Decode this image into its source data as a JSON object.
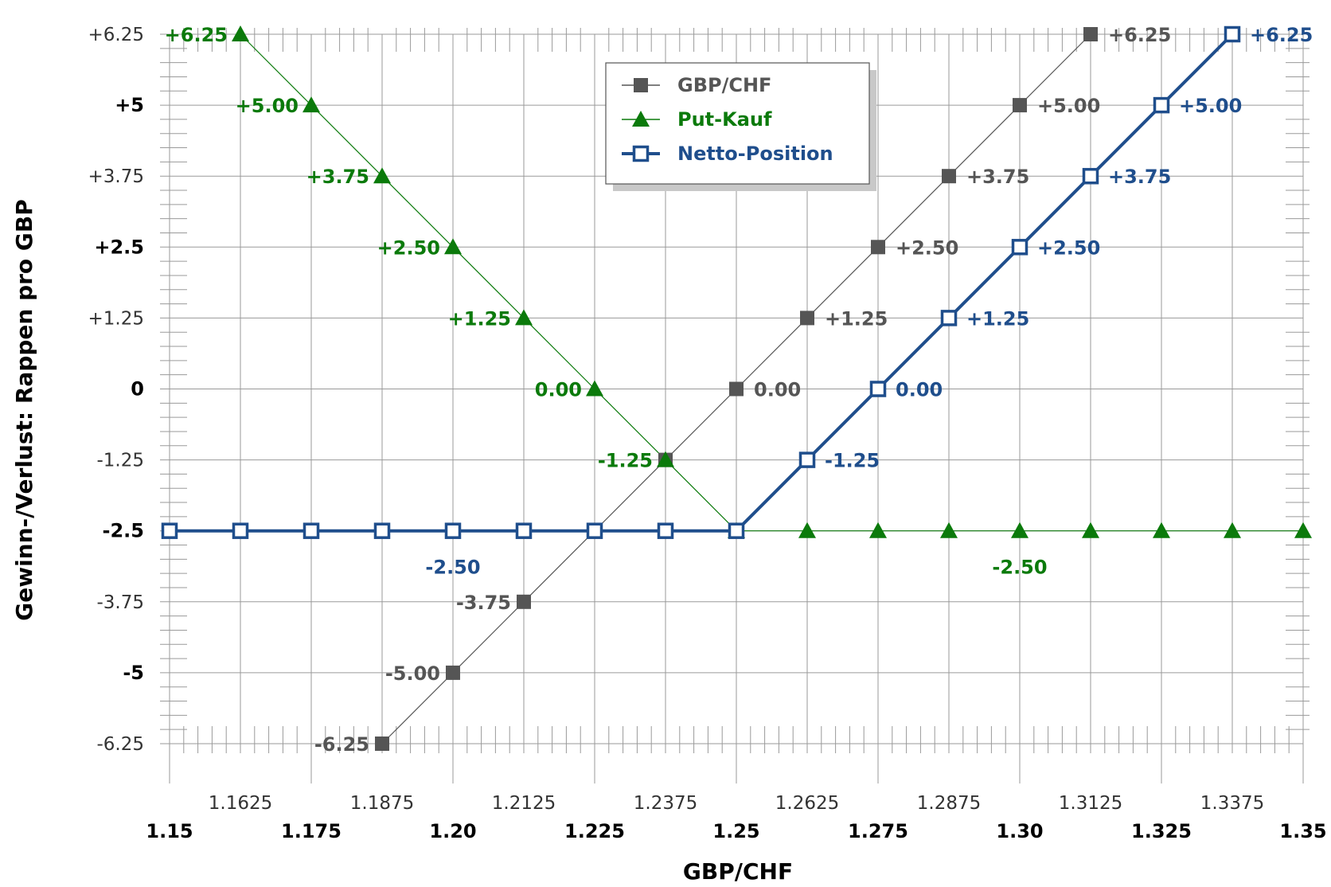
{
  "chart_data": {
    "type": "line",
    "xlabel": "GBP/CHF",
    "ylabel": "Gewinn-/Verlust: Rappen pro GBP",
    "xlim": [
      1.15,
      1.35
    ],
    "ylim": [
      -6.25,
      6.25
    ],
    "grid": true,
    "legend_position": "top-center",
    "x_ticks_major": [
      "1.15",
      "1.175",
      "1.20",
      "1.225",
      "1.25",
      "1.275",
      "1.30",
      "1.325",
      "1.35"
    ],
    "x_ticks_minor": [
      "1.1625",
      "1.1875",
      "1.2125",
      "1.2375",
      "1.2625",
      "1.2875",
      "1.3125",
      "1.3375"
    ],
    "y_ticks": [
      {
        "value": 6.25,
        "label": "+6.25",
        "bold": false
      },
      {
        "value": 5,
        "label": "+5",
        "bold": true
      },
      {
        "value": 3.75,
        "label": "+3.75",
        "bold": false
      },
      {
        "value": 2.5,
        "label": "+2.5",
        "bold": true
      },
      {
        "value": 1.25,
        "label": "+1.25",
        "bold": false
      },
      {
        "value": 0,
        "label": "0",
        "bold": true
      },
      {
        "value": -1.25,
        "label": "-1.25",
        "bold": false
      },
      {
        "value": -2.5,
        "label": "-2.5",
        "bold": true
      },
      {
        "value": -3.75,
        "label": "-3.75",
        "bold": false
      },
      {
        "value": -5,
        "label": "-5",
        "bold": true
      },
      {
        "value": -6.25,
        "label": "-6.25",
        "bold": false
      }
    ],
    "series": [
      {
        "name": "GBP/CHF",
        "color": "#555555",
        "marker": "filled-square",
        "x": [
          1.1875,
          1.2,
          1.2125,
          1.225,
          1.2375,
          1.25,
          1.2625,
          1.275,
          1.2875,
          1.3,
          1.3125
        ],
        "y": [
          -6.25,
          -5,
          -3.75,
          -2.5,
          -1.25,
          0,
          1.25,
          2.5,
          3.75,
          5,
          6.25
        ],
        "labels": [
          {
            "x": 1.1875,
            "y": -6.25,
            "text": "-6.25",
            "side": "left"
          },
          {
            "x": 1.2,
            "y": -5,
            "text": "-5.00",
            "side": "left"
          },
          {
            "x": 1.2125,
            "y": -3.75,
            "text": "-3.75",
            "side": "left"
          },
          {
            "x": 1.25,
            "y": 0,
            "text": "0.00",
            "side": "right"
          },
          {
            "x": 1.2625,
            "y": 1.25,
            "text": "+1.25",
            "side": "right"
          },
          {
            "x": 1.275,
            "y": 2.5,
            "text": "+2.50",
            "side": "right"
          },
          {
            "x": 1.2875,
            "y": 3.75,
            "text": "+3.75",
            "side": "right"
          },
          {
            "x": 1.3,
            "y": 5,
            "text": "+5.00",
            "side": "right"
          },
          {
            "x": 1.3125,
            "y": 6.25,
            "text": "+6.25",
            "side": "right"
          }
        ]
      },
      {
        "name": "Put-Kauf",
        "color": "#0b7a0b",
        "marker": "triangle",
        "x": [
          1.1625,
          1.175,
          1.1875,
          1.2,
          1.2125,
          1.225,
          1.2375,
          1.25,
          1.2625,
          1.275,
          1.2875,
          1.3,
          1.3125,
          1.325,
          1.3375,
          1.35
        ],
        "y": [
          6.25,
          5,
          3.75,
          2.5,
          1.25,
          0,
          -1.25,
          -2.5,
          -2.5,
          -2.5,
          -2.5,
          -2.5,
          -2.5,
          -2.5,
          -2.5,
          -2.5
        ],
        "labels": [
          {
            "x": 1.1625,
            "y": 6.25,
            "text": "+6.25",
            "side": "left"
          },
          {
            "x": 1.175,
            "y": 5,
            "text": "+5.00",
            "side": "left"
          },
          {
            "x": 1.1875,
            "y": 3.75,
            "text": "+3.75",
            "side": "left"
          },
          {
            "x": 1.2,
            "y": 2.5,
            "text": "+2.50",
            "side": "left"
          },
          {
            "x": 1.2125,
            "y": 1.25,
            "text": "+1.25",
            "side": "left"
          },
          {
            "x": 1.225,
            "y": 0,
            "text": "0.00",
            "side": "left"
          },
          {
            "x": 1.2375,
            "y": -1.25,
            "text": "-1.25",
            "side": "left"
          },
          {
            "x": 1.3,
            "y": -3.125,
            "text": "-2.50",
            "side": "center"
          }
        ]
      },
      {
        "name": "Netto-Position",
        "color": "#1f4e8c",
        "marker": "open-square",
        "x": [
          1.15,
          1.1625,
          1.175,
          1.1875,
          1.2,
          1.2125,
          1.225,
          1.2375,
          1.25,
          1.2625,
          1.275,
          1.2875,
          1.3,
          1.3125,
          1.325,
          1.3375
        ],
        "y": [
          -2.5,
          -2.5,
          -2.5,
          -2.5,
          -2.5,
          -2.5,
          -2.5,
          -2.5,
          -2.5,
          -1.25,
          0,
          1.25,
          2.5,
          3.75,
          5,
          6.25
        ],
        "labels": [
          {
            "x": 1.2,
            "y": -3.125,
            "text": "-2.50",
            "side": "center"
          },
          {
            "x": 1.2625,
            "y": -1.25,
            "text": "-1.25",
            "side": "right"
          },
          {
            "x": 1.275,
            "y": 0,
            "text": "0.00",
            "side": "right"
          },
          {
            "x": 1.2875,
            "y": 1.25,
            "text": "+1.25",
            "side": "right"
          },
          {
            "x": 1.3,
            "y": 2.5,
            "text": "+2.50",
            "side": "right"
          },
          {
            "x": 1.3125,
            "y": 3.75,
            "text": "+3.75",
            "side": "right"
          },
          {
            "x": 1.325,
            "y": 5,
            "text": "+5.00",
            "side": "right"
          },
          {
            "x": 1.3375,
            "y": 6.25,
            "text": "+6.25",
            "side": "right"
          }
        ]
      }
    ]
  }
}
